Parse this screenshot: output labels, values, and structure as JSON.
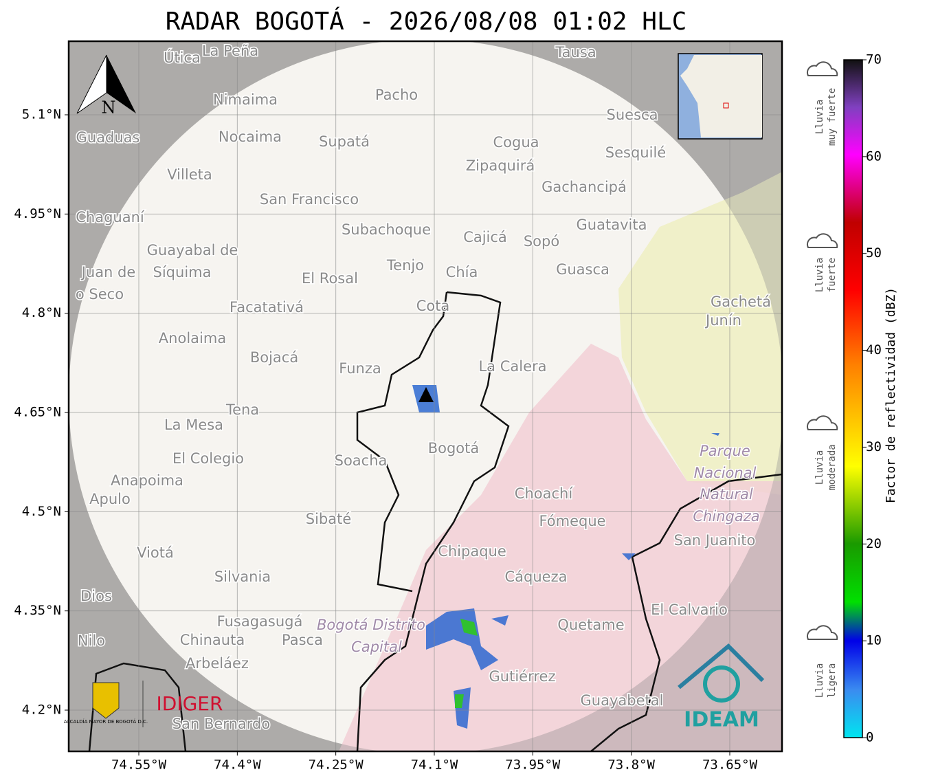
{
  "title": "RADAR BOGOTÁ - 2026/08/08 01:02 HLC",
  "lat_ticks": [
    {
      "value": 5.1,
      "label": "5.1°N"
    },
    {
      "value": 4.95,
      "label": "4.95°N"
    },
    {
      "value": 4.8,
      "label": "4.8°N"
    },
    {
      "value": 4.65,
      "label": "4.65°N"
    },
    {
      "value": 4.5,
      "label": "4.5°N"
    },
    {
      "value": 4.35,
      "label": "4.35°N"
    },
    {
      "value": 4.2,
      "label": "4.2°N"
    }
  ],
  "lon_ticks": [
    {
      "value": -74.55,
      "label": "74.55°W"
    },
    {
      "value": -74.4,
      "label": "74.4°W"
    },
    {
      "value": -74.25,
      "label": "74.25°W"
    },
    {
      "value": -74.1,
      "label": "74.1°W"
    },
    {
      "value": -73.95,
      "label": "73.95°W"
    },
    {
      "value": -73.8,
      "label": "73.8°W"
    },
    {
      "value": -73.65,
      "label": "73.65°W"
    }
  ],
  "colorbar": {
    "label": "Factor de reflectividad (dBZ)",
    "lim": [
      0,
      70
    ],
    "ticks": [
      0,
      10,
      20,
      30,
      40,
      50,
      60,
      70
    ]
  },
  "rain_levels": [
    [
      "Lluvia",
      "muy fuerte"
    ],
    [
      "Lluvia",
      "fuerte"
    ],
    [
      "Lluvia",
      "moderada"
    ],
    [
      "Lluvia",
      "ligera"
    ]
  ],
  "places": [
    "Útica",
    "La Peña",
    "Tausa",
    "Pacho",
    "Nimaima",
    "Guaduas",
    "Nocaima",
    "Supatá",
    "Cogua",
    "Suesca",
    "Sesquilé",
    "Zipaquirá",
    "Villeta",
    "Gachancipá",
    "San Francisco",
    "Chaguaní",
    "Guatavita",
    "Subachoque",
    "Cajicá",
    "Sopó",
    "Guayabal de",
    "Síquima",
    "Juan de",
    "o Seco",
    "Tenjo",
    "Chía",
    "El Rosal",
    "Guasca",
    "Facatativá",
    "Cota",
    "Gachetá",
    "Junín",
    "Anolaima",
    "Bojacá",
    "Funza",
    "La Calera",
    "Tena",
    "La Mesa",
    "Bogotá",
    "El Colegio",
    "Soacha",
    "Anapoima",
    "Apulo",
    "Choachí",
    "Sibaté",
    "Fómeque",
    "Parque",
    "Nacional",
    "Natural",
    "Chingaza",
    "San Juanito",
    "Viotá",
    "Chipaque",
    "Cáqueza",
    "Silvania",
    "Dios",
    "El Calvario",
    "Fusagasugá",
    "Quetame",
    "Bogotá Distrito",
    "Capital",
    "Nilo",
    "Chinauta",
    "Pasca",
    "Arbeláez",
    "Gutiérrez",
    "Guayabetal",
    "San Bernardo"
  ],
  "north": "N",
  "logos": {
    "alcaldia": "ALCALDÍA MAYOR DE BOGOTÁ D.C.",
    "idiger": "IDIGER",
    "ideam": "IDEAM"
  }
}
